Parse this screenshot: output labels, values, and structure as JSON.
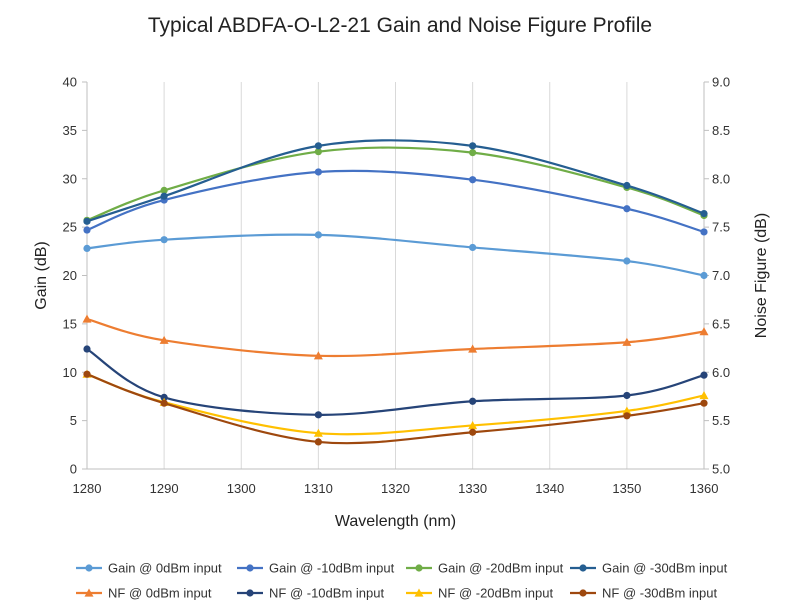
{
  "chart_data": {
    "type": "line",
    "title": "Typical ABDFA-O-L2-21 Gain and Noise Figure Profile",
    "xlabel": "Wavelength (nm)",
    "ylabel": "Gain (dB)",
    "y2label": "Noise Figure (dB)",
    "xlim": [
      1280,
      1360
    ],
    "ylim": [
      0,
      40
    ],
    "y2lim": [
      5.0,
      9.0
    ],
    "xticks": [
      "1280",
      "1290",
      "1300",
      "1310",
      "1320",
      "1330",
      "1340",
      "1350",
      "1360"
    ],
    "yticks": [
      "0",
      "5",
      "10",
      "15",
      "20",
      "25",
      "30",
      "35",
      "40"
    ],
    "y2ticks": [
      "5.0",
      "5.5",
      "6.0",
      "6.5",
      "7.0",
      "7.5",
      "8.0",
      "8.5",
      "9.0"
    ],
    "grid": "vertical",
    "legend_position": "bottom",
    "x": [
      1280,
      1290,
      1310,
      1330,
      1350,
      1360
    ],
    "series": [
      {
        "name": "Gain @ 0dBm input",
        "axis": "left",
        "marker": "circle",
        "color": "#5B9BD5",
        "values": [
          22.8,
          23.7,
          24.2,
          22.9,
          21.5,
          20.0
        ]
      },
      {
        "name": "Gain @ -10dBm input",
        "axis": "left",
        "marker": "circle",
        "color": "#4472C4",
        "values": [
          24.7,
          27.8,
          30.7,
          29.9,
          26.9,
          24.5
        ]
      },
      {
        "name": "Gain @ -20dBm input",
        "axis": "left",
        "marker": "circle",
        "color": "#70AD47",
        "values": [
          25.7,
          28.8,
          32.8,
          32.7,
          29.1,
          26.2
        ]
      },
      {
        "name": "Gain @ -30dBm input",
        "axis": "left",
        "marker": "circle",
        "color": "#255E91",
        "values": [
          25.6,
          28.2,
          33.4,
          33.4,
          29.3,
          26.4
        ]
      },
      {
        "name": "NF @ 0dBm input",
        "axis": "right",
        "marker": "triangle",
        "color": "#ED7D31",
        "values": [
          6.55,
          6.33,
          6.17,
          6.24,
          6.31,
          6.42
        ]
      },
      {
        "name": "NF @ -10dBm input",
        "axis": "right",
        "marker": "circle",
        "color": "#264478",
        "values": [
          6.24,
          5.74,
          5.56,
          5.7,
          5.76,
          5.97
        ]
      },
      {
        "name": "NF @ -20dBm input",
        "axis": "right",
        "marker": "triangle",
        "color": "#FFC000",
        "values": [
          5.98,
          5.69,
          5.37,
          5.45,
          5.6,
          5.76
        ]
      },
      {
        "name": "NF @ -30dBm input",
        "axis": "right",
        "marker": "circle",
        "color": "#9E480E",
        "values": [
          5.98,
          5.68,
          5.28,
          5.38,
          5.55,
          5.68
        ]
      }
    ]
  }
}
